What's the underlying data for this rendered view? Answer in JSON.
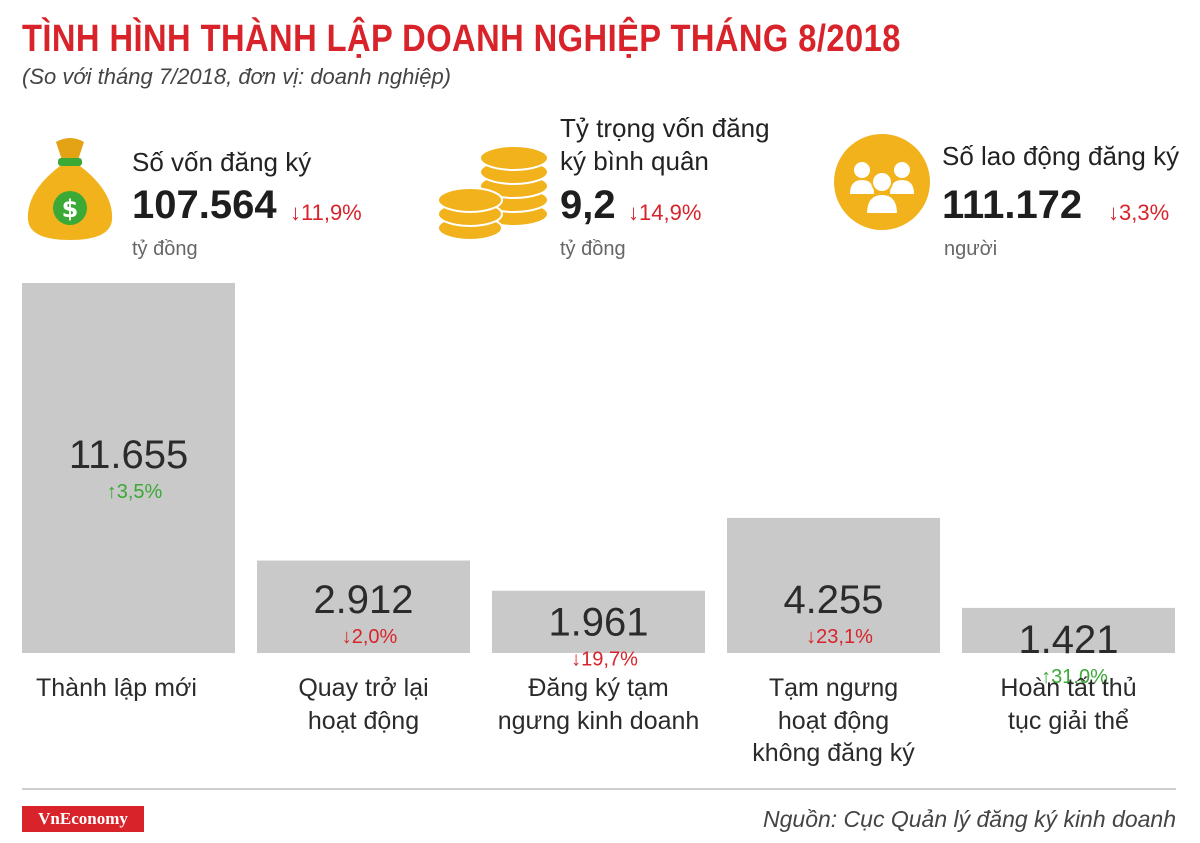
{
  "title": "TÌNH HÌNH THÀNH LẬP DOANH NGHIỆP THÁNG 8/2018",
  "subtitle": "(So với tháng 7/2018, đơn vị: doanh nghiệp)",
  "colors": {
    "accent": "#d8232a",
    "gold": "#f2b21c",
    "bar": "#c9c9c9",
    "up": "#3aa935",
    "down": "#d8232a"
  },
  "stats": [
    {
      "icon": "money-bag-icon",
      "label": "Số vốn đăng ký",
      "value": "107.564",
      "change": "↓11,9%",
      "unit": "tỷ đồng"
    },
    {
      "icon": "coins-icon",
      "label": "Tỷ trọng vốn đăng\nký bình quân",
      "value": "9,2",
      "change": "↓14,9%",
      "unit": "tỷ đồng"
    },
    {
      "icon": "people-icon",
      "label": "Số lao động đăng ký",
      "value": "111.172",
      "change": "↓3,3%",
      "unit": "người"
    }
  ],
  "chart_data": {
    "type": "bar",
    "categories": [
      "Thành lập mới",
      "Quay trở lại hoạt động",
      "Đăng ký tạm ngưng kinh doanh",
      "Tạm ngưng hoạt động không đăng ký",
      "Hoàn tất thủ tục giải thể"
    ],
    "category_labels": [
      "Thành lập mới",
      "Quay trở lại\nhoạt động",
      "Đăng ký tạm\nngưng kinh doanh",
      "Tạm ngưng\nhoạt động\nkhông đăng ký",
      "Hoàn tất thủ\ntục giải thể"
    ],
    "values": [
      11655,
      2912,
      1961,
      4255,
      1421
    ],
    "value_labels": [
      "11.655",
      "2.912",
      "1.961",
      "4.255",
      "1.421"
    ],
    "changes": [
      "3,5%",
      "2,0%",
      "19,7%",
      "23,1%",
      "31,0%"
    ],
    "directions": [
      "up",
      "down",
      "down",
      "down",
      "up"
    ],
    "ylim": [
      0,
      11655
    ],
    "grid": false,
    "legend": "none"
  },
  "footer": {
    "logo": "VnEconomy",
    "source": "Nguồn: Cục Quản lý đăng ký kinh doanh"
  }
}
